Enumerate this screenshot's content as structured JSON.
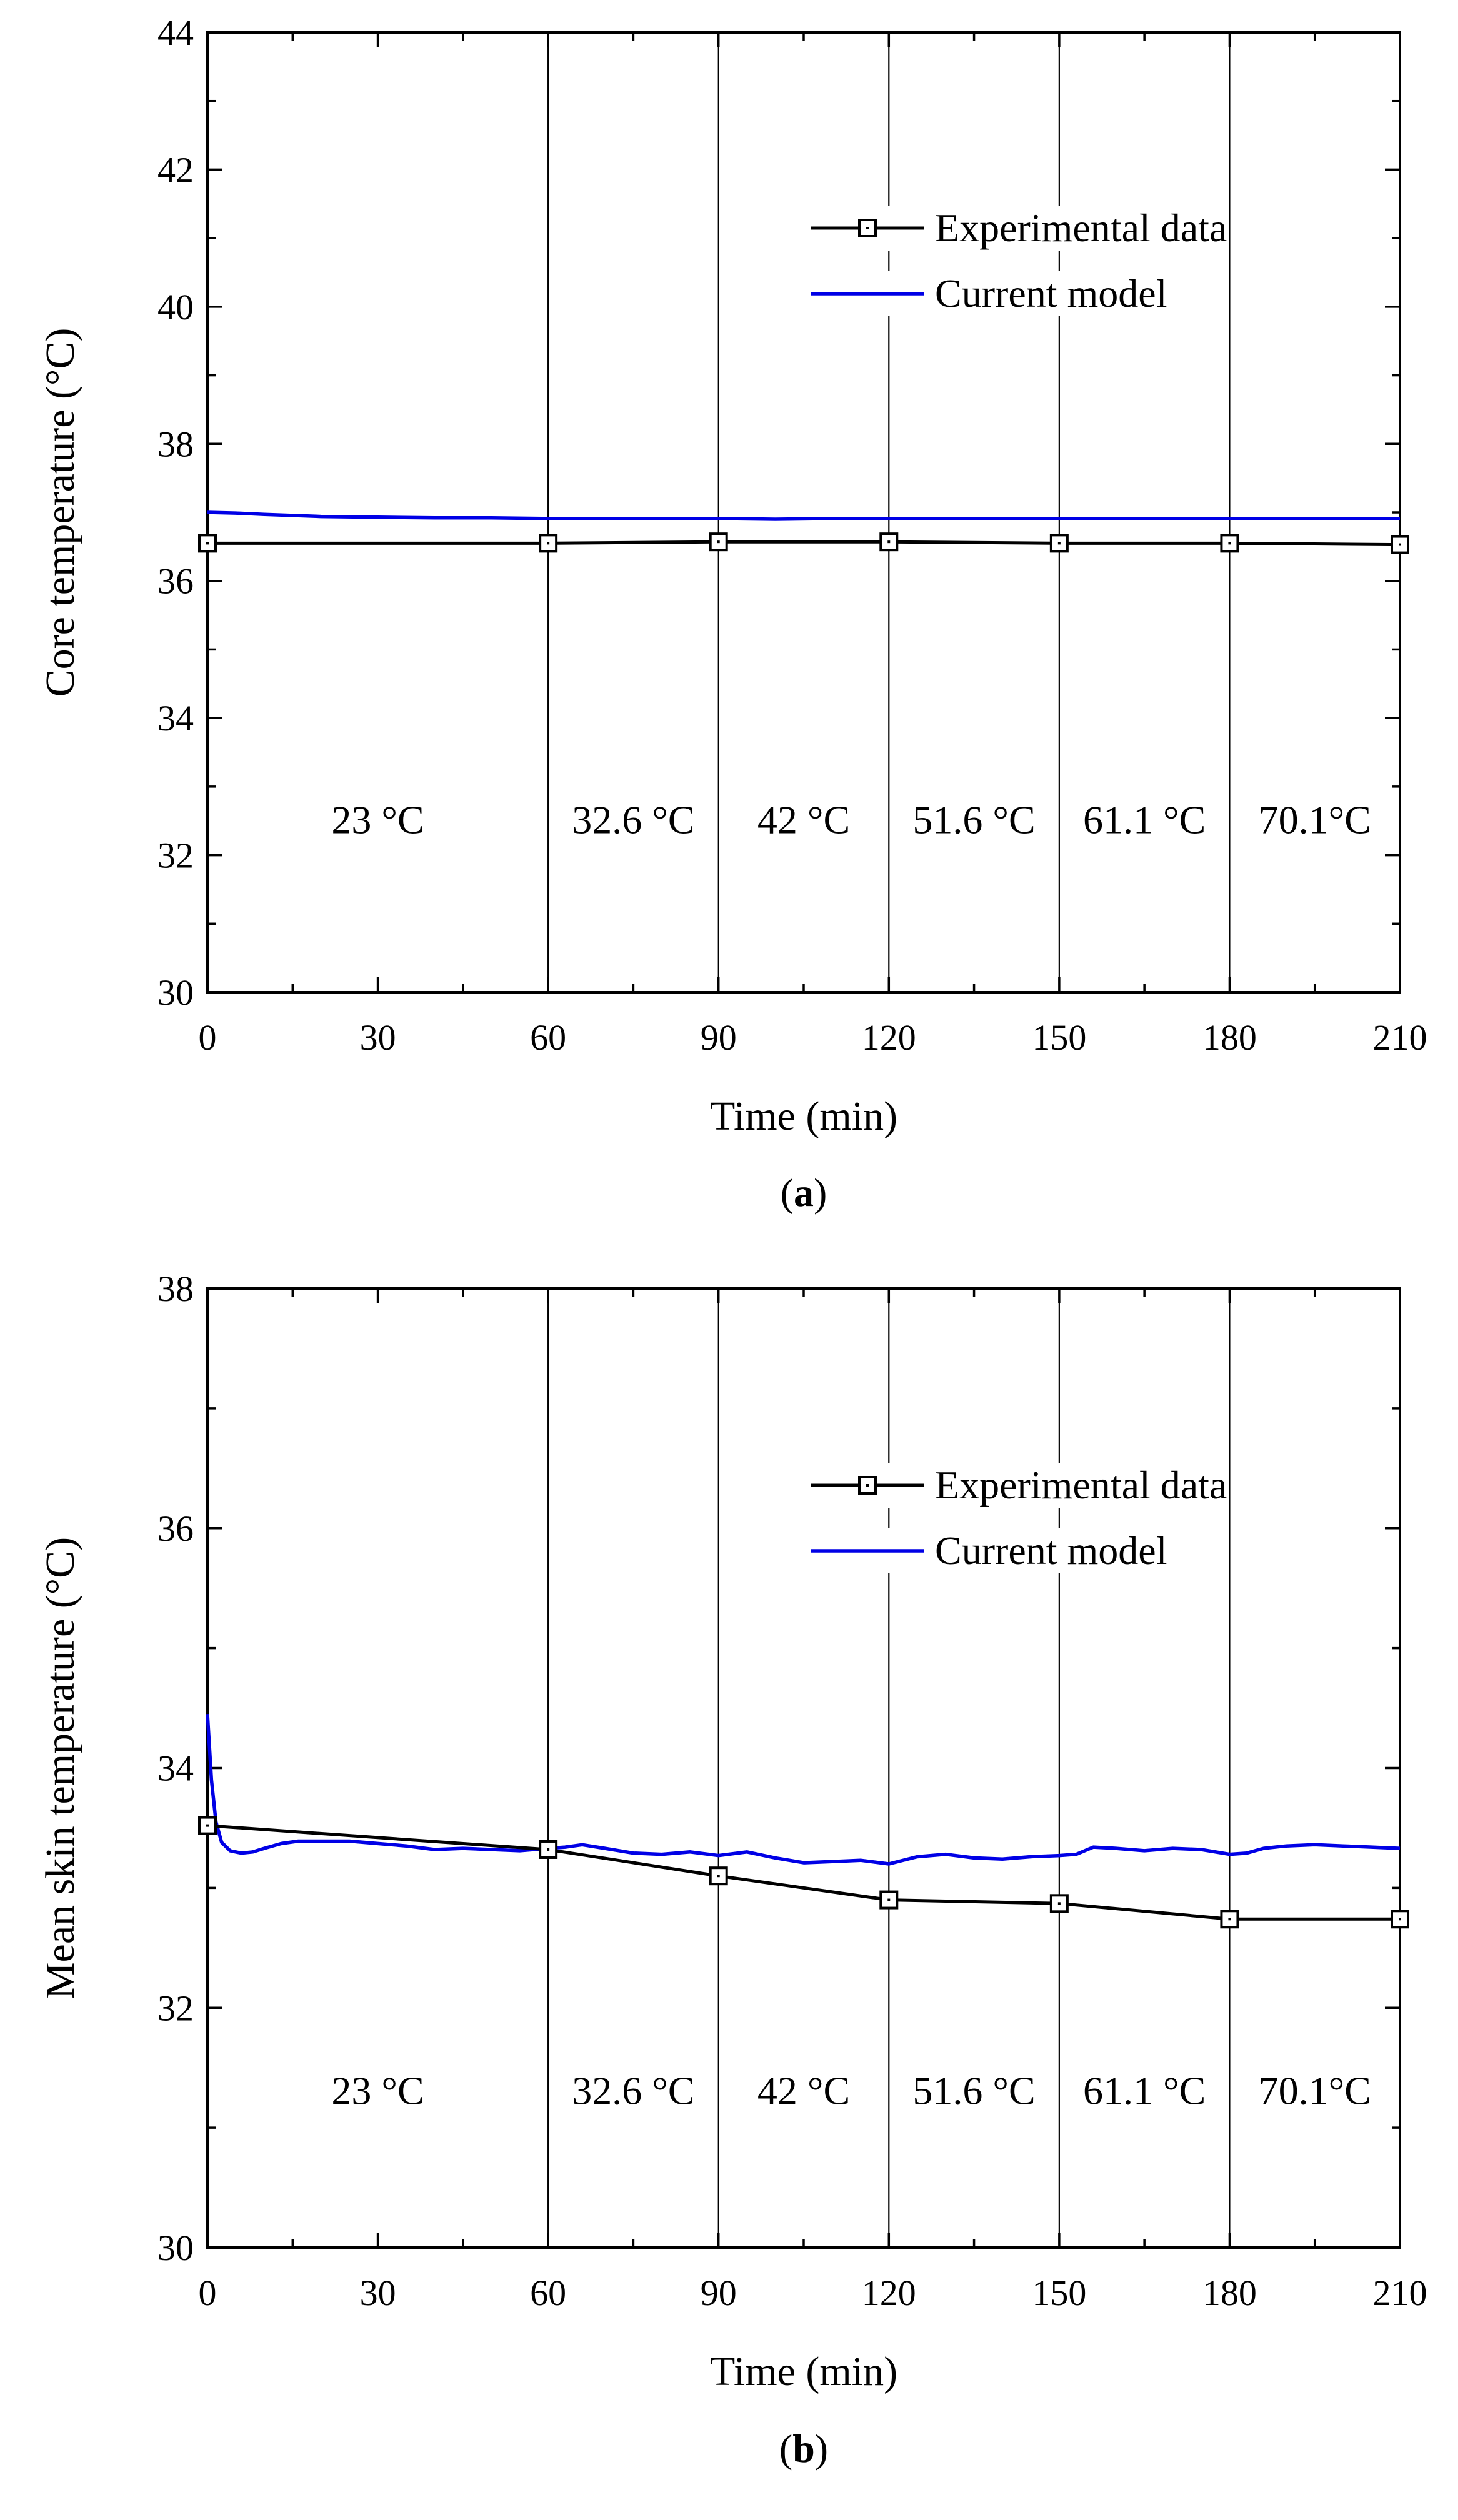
{
  "chart_data": [
    {
      "type": "line",
      "panel_label": "a",
      "xlabel": "Time (min)",
      "ylabel": "Core temperature (°C)",
      "xlim": [
        0,
        210
      ],
      "ylim": [
        30,
        44
      ],
      "xticks": [
        "0",
        "30",
        "60",
        "90",
        "120",
        "150",
        "180",
        "210"
      ],
      "yticks": [
        "30",
        "32",
        "34",
        "36",
        "38",
        "40",
        "42",
        "44"
      ],
      "grid": false,
      "legend_position": "upper-right",
      "vlines": [
        60,
        90,
        120,
        150,
        180
      ],
      "phases": [
        {
          "label": "23 °C",
          "x": 30
        },
        {
          "label": "32.6 °C",
          "x": 75
        },
        {
          "label": "42 °C",
          "x": 105
        },
        {
          "label": "51.6 °C",
          "x": 135
        },
        {
          "label": "61.1 °C",
          "x": 165
        },
        {
          "label": "70.1°C",
          "x": 195
        }
      ],
      "phase_label_y": 32.5,
      "series": [
        {
          "name": "Experimental data",
          "color": "#000000",
          "marker": "square",
          "x": [
            0,
            60,
            90,
            120,
            150,
            180,
            210
          ],
          "y": [
            36.55,
            36.55,
            36.57,
            36.57,
            36.55,
            36.55,
            36.53
          ]
        },
        {
          "name": "Current model",
          "color": "#0000e6",
          "marker": "none",
          "x": [
            0,
            5,
            10,
            20,
            30,
            40,
            50,
            60,
            70,
            80,
            90,
            100,
            110,
            120,
            130,
            140,
            150,
            160,
            170,
            180,
            190,
            200,
            210
          ],
          "y": [
            37.0,
            36.99,
            36.97,
            36.94,
            36.93,
            36.92,
            36.92,
            36.91,
            36.91,
            36.91,
            36.91,
            36.9,
            36.91,
            36.91,
            36.91,
            36.91,
            36.91,
            36.91,
            36.91,
            36.91,
            36.91,
            36.91,
            36.91
          ]
        }
      ]
    },
    {
      "type": "line",
      "panel_label": "b",
      "xlabel": "Time (min)",
      "ylabel": "Mean skin temperature (°C)",
      "xlim": [
        0,
        210
      ],
      "ylim": [
        30,
        38
      ],
      "xticks": [
        "0",
        "30",
        "60",
        "90",
        "120",
        "150",
        "180",
        "210"
      ],
      "yticks": [
        "30",
        "32",
        "34",
        "36",
        "38"
      ],
      "grid": false,
      "legend_position": "upper-right",
      "vlines": [
        60,
        90,
        120,
        150,
        180
      ],
      "phases": [
        {
          "label": "23 °C",
          "x": 30
        },
        {
          "label": "32.6 °C",
          "x": 75
        },
        {
          "label": "42 °C",
          "x": 105
        },
        {
          "label": "51.6 °C",
          "x": 135
        },
        {
          "label": "61.1 °C",
          "x": 165
        },
        {
          "label": "70.1°C",
          "x": 195
        }
      ],
      "phase_label_y": 31.3,
      "series": [
        {
          "name": "Experimental data",
          "color": "#000000",
          "marker": "square",
          "x": [
            0,
            60,
            90,
            120,
            150,
            180,
            210
          ],
          "y": [
            33.52,
            33.32,
            33.1,
            32.9,
            32.87,
            32.74,
            32.74
          ]
        },
        {
          "name": "Current model",
          "color": "#0000e6",
          "marker": "none",
          "x": [
            0,
            0.7,
            1.5,
            2.5,
            4,
            6,
            8,
            10,
            13,
            16,
            20,
            25,
            30,
            35,
            40,
            45,
            50,
            55,
            60,
            63,
            66,
            70,
            75,
            80,
            85,
            90,
            95,
            100,
            105,
            110,
            115,
            120,
            125,
            130,
            135,
            140,
            145,
            150,
            153,
            156,
            160,
            165,
            170,
            175,
            180,
            183,
            186,
            190,
            195,
            200,
            205,
            210
          ],
          "y": [
            34.45,
            33.9,
            33.55,
            33.38,
            33.31,
            33.29,
            33.3,
            33.33,
            33.37,
            33.39,
            33.39,
            33.39,
            33.37,
            33.35,
            33.32,
            33.33,
            33.32,
            33.31,
            33.33,
            33.34,
            33.36,
            33.33,
            33.29,
            33.28,
            33.3,
            33.27,
            33.3,
            33.25,
            33.21,
            33.22,
            33.23,
            33.2,
            33.26,
            33.28,
            33.25,
            33.24,
            33.26,
            33.27,
            33.28,
            33.34,
            33.33,
            33.31,
            33.33,
            33.32,
            33.28,
            33.29,
            33.33,
            33.35,
            33.36,
            33.35,
            33.34,
            33.33
          ]
        }
      ]
    }
  ]
}
